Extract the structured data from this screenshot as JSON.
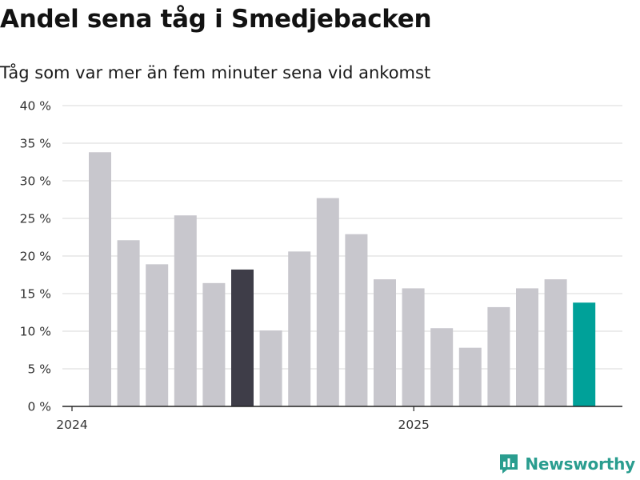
{
  "title": "Andel sena tåg i Smedjebacken",
  "subtitle": "Tåg som var mer än fem minuter sena vid ankomst",
  "brand": {
    "name": "Newsworthy",
    "icon": "newsworthy-logo-icon"
  },
  "colors": {
    "default": "#c8c7cd",
    "highlight": "#3e3d48",
    "latest": "#00a199",
    "grid": "#d9d9d9",
    "axis": "#222222",
    "brand": "#2a9d8f"
  },
  "chart_data": {
    "type": "bar",
    "title": "Andel sena tåg i Smedjebacken",
    "subtitle": "Tåg som var mer än fem minuter sena vid ankomst",
    "xlabel": "",
    "ylabel": "",
    "ylim": [
      0,
      40
    ],
    "yticks": [
      0,
      5,
      10,
      15,
      20,
      25,
      30,
      35,
      40
    ],
    "ytick_labels": [
      "0 %",
      "5 %",
      "10 %",
      "15 %",
      "20 %",
      "25 %",
      "30 %",
      "35 %",
      "40 %"
    ],
    "x_axis_labels": [
      {
        "label": "2024",
        "at_index": 0
      },
      {
        "label": "2025",
        "at_index": 12
      }
    ],
    "unit": "%",
    "grid": true,
    "values": [
      33.8,
      22.1,
      18.9,
      25.4,
      16.4,
      18.2,
      10.1,
      20.6,
      27.7,
      22.9,
      16.9,
      15.7,
      10.4,
      7.8,
      13.2,
      15.7,
      16.9,
      13.8
    ],
    "bar_colors": [
      "default",
      "default",
      "default",
      "default",
      "default",
      "highlight",
      "default",
      "default",
      "default",
      "default",
      "default",
      "default",
      "default",
      "default",
      "default",
      "default",
      "default",
      "latest"
    ]
  }
}
